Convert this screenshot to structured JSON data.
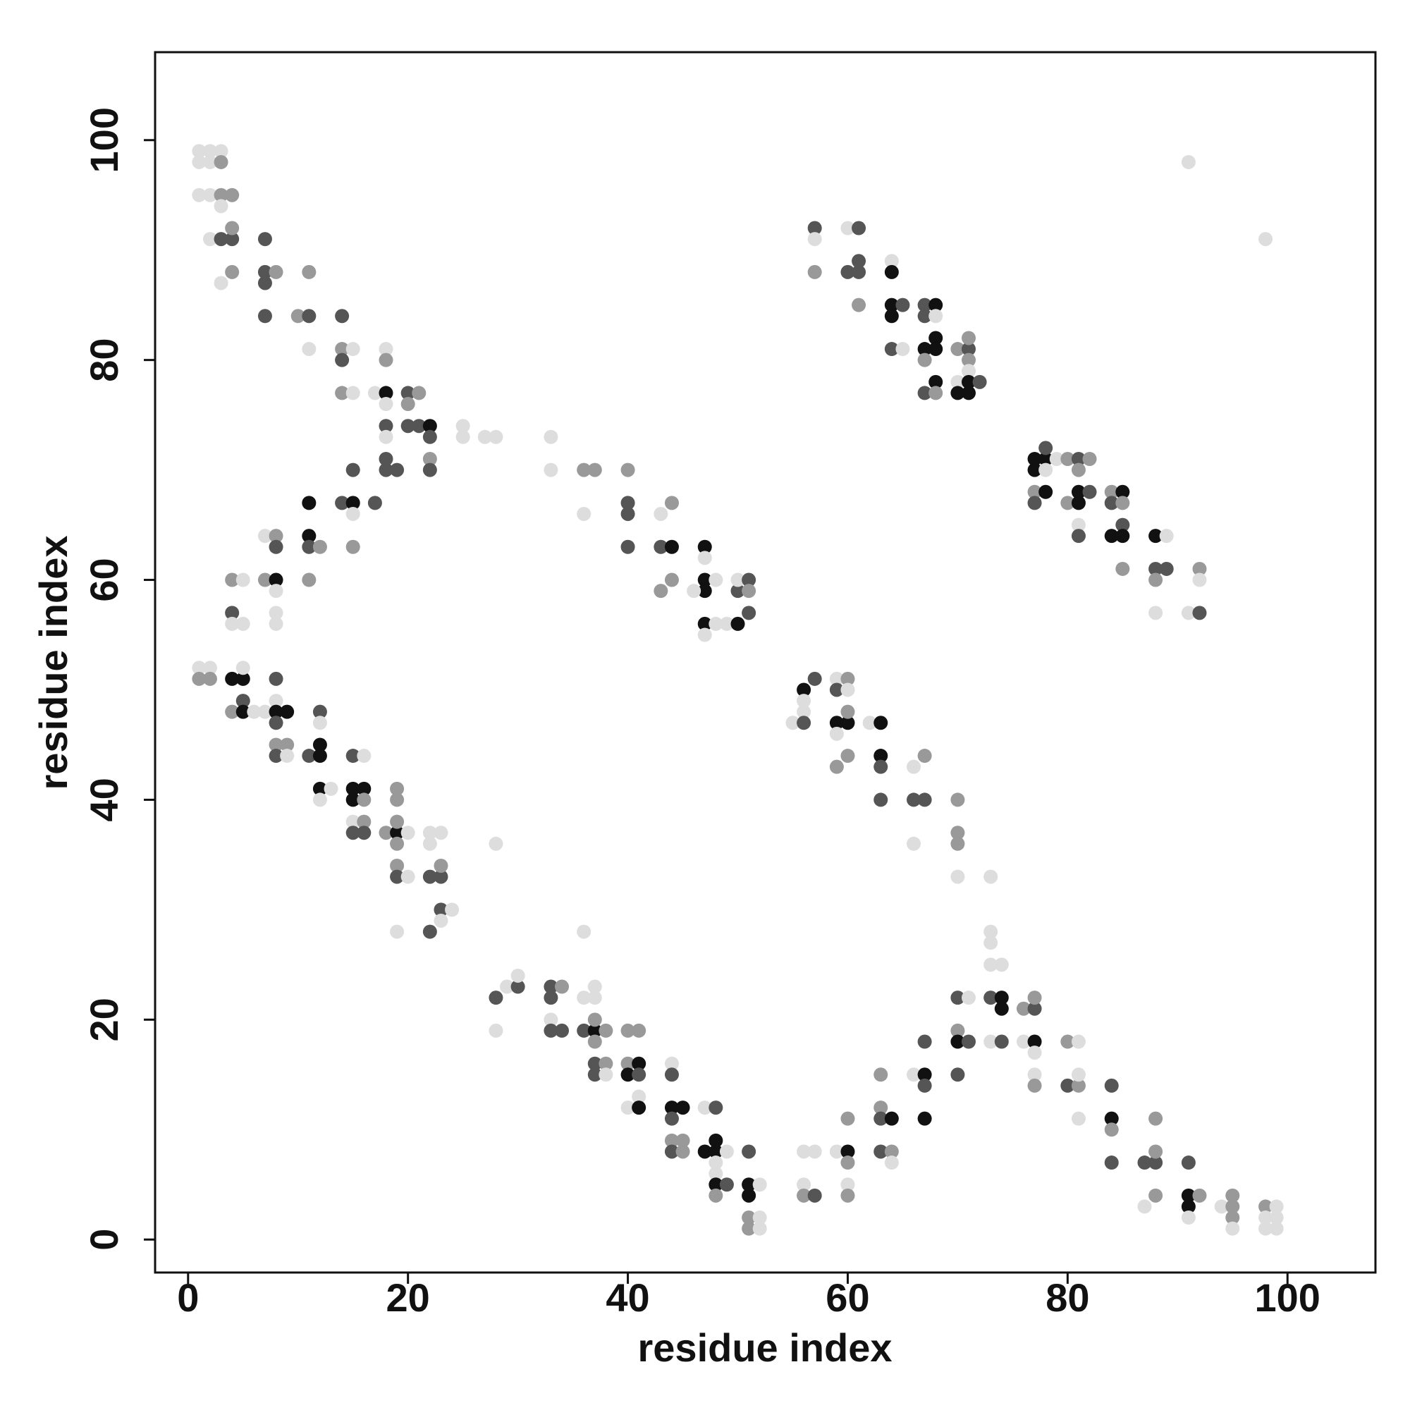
{
  "chart_data": {
    "type": "scatter",
    "xlabel": "residue index",
    "ylabel": "residue index",
    "xlim": [
      -3,
      108
    ],
    "ylim": [
      -3,
      108
    ],
    "xticks": [
      0,
      20,
      40,
      60,
      80,
      100
    ],
    "yticks": [
      0,
      20,
      40,
      60,
      80,
      100
    ],
    "x": [
      1,
      2,
      3,
      1,
      2,
      3,
      1,
      2,
      3,
      4,
      3,
      2,
      3,
      4,
      4,
      3,
      4,
      7,
      7,
      8,
      7,
      7,
      10,
      11,
      11,
      11,
      14,
      14,
      15,
      14,
      14,
      15,
      17,
      18,
      18,
      18,
      18,
      18,
      18,
      18,
      18,
      19,
      20,
      20,
      21,
      20,
      21,
      22,
      22,
      22,
      22,
      25,
      25,
      27,
      28,
      33,
      33,
      36,
      37,
      36,
      40,
      40,
      40,
      40,
      43,
      44,
      43,
      44,
      43,
      44,
      47,
      47,
      47,
      47,
      48,
      46,
      47,
      47,
      48,
      49,
      50,
      50,
      50,
      51,
      51,
      51,
      4,
      5,
      4,
      4,
      5,
      7,
      8,
      7,
      8,
      8,
      8,
      8,
      8,
      11,
      11,
      11,
      12,
      11,
      14,
      15,
      15,
      15,
      15,
      17,
      1,
      2,
      1,
      2,
      4,
      5,
      5,
      5,
      4,
      5,
      6,
      7,
      8,
      8,
      8,
      9,
      8,
      8,
      9,
      8,
      9,
      11,
      12,
      12,
      12,
      12,
      12,
      13,
      12,
      15,
      16,
      15,
      16,
      15,
      16,
      15,
      16,
      15,
      16,
      18,
      19,
      19,
      19,
      19,
      19,
      20,
      19,
      19,
      20,
      19,
      22,
      23,
      22,
      22,
      23,
      23,
      23,
      24,
      23,
      22,
      28,
      28,
      29,
      30,
      30,
      28,
      33,
      34,
      33,
      33,
      33,
      34,
      36,
      37,
      37,
      36,
      37,
      37,
      37,
      38,
      37,
      38,
      37,
      38,
      36,
      40,
      41,
      40,
      41,
      40,
      41,
      40,
      41,
      41,
      44,
      44,
      44,
      45,
      44,
      44,
      45,
      44,
      45,
      47,
      48,
      47,
      48,
      48,
      49,
      48,
      48,
      48,
      49,
      48,
      51,
      51,
      52,
      51,
      51,
      52,
      51,
      52,
      56,
      57,
      56,
      56,
      57,
      59,
      60,
      60,
      60,
      60,
      60,
      63,
      63,
      63,
      64,
      63,
      64,
      64,
      66,
      67,
      67,
      67,
      67,
      70,
      71,
      70,
      70,
      71,
      70,
      73,
      74,
      74,
      73,
      74,
      73,
      74,
      73,
      73,
      76,
      77,
      77,
      76,
      77,
      77,
      77,
      77,
      80,
      81,
      80,
      81,
      81,
      81,
      84,
      84,
      84,
      84,
      87,
      88,
      88,
      88,
      87,
      88,
      91,
      91,
      92,
      91,
      91,
      94,
      95,
      95,
      95,
      95,
      98,
      99,
      98,
      99,
      98,
      99,
      56,
      57,
      56,
      56,
      55,
      56,
      59,
      60,
      59,
      60,
      59,
      60,
      60,
      59,
      59,
      60,
      62,
      63,
      63,
      63,
      63,
      66,
      67,
      66,
      67,
      66,
      70,
      70,
      70,
      70,
      73,
      57,
      57,
      57,
      60,
      61,
      60,
      61,
      61,
      61,
      64,
      64,
      64,
      65,
      64,
      64,
      65,
      67,
      68,
      67,
      68,
      68,
      67,
      68,
      67,
      68,
      67,
      68,
      70,
      71,
      71,
      71,
      70,
      71,
      70,
      71,
      71,
      72,
      77,
      78,
      78,
      77,
      77,
      78,
      79,
      80,
      81,
      82,
      81,
      77,
      78,
      80,
      81,
      81,
      82,
      81,
      81,
      84,
      85,
      84,
      85,
      85,
      84,
      85,
      85,
      88,
      89,
      88,
      89,
      88,
      88,
      91,
      92,
      92,
      92,
      91,
      98
    ],
    "values": [
      99,
      99,
      99,
      98,
      98,
      98,
      95,
      95,
      95,
      95,
      94,
      91,
      91,
      91,
      92,
      87,
      88,
      91,
      88,
      88,
      87,
      84,
      84,
      84,
      88,
      81,
      84,
      81,
      81,
      80,
      77,
      77,
      77,
      77,
      81,
      80,
      76,
      74,
      73,
      71,
      70,
      70,
      77,
      76,
      77,
      74,
      74,
      74,
      73,
      71,
      70,
      74,
      73,
      73,
      73,
      73,
      70,
      70,
      70,
      66,
      70,
      67,
      66,
      63,
      66,
      67,
      63,
      63,
      59,
      60,
      63,
      62,
      60,
      59,
      60,
      59,
      56,
      55,
      56,
      56,
      56,
      59,
      60,
      60,
      59,
      57,
      60,
      60,
      57,
      56,
      56,
      64,
      64,
      60,
      60,
      63,
      59,
      57,
      56,
      67,
      64,
      63,
      63,
      60,
      67,
      67,
      70,
      66,
      63,
      67,
      52,
      52,
      51,
      51,
      51,
      51,
      52,
      49,
      48,
      48,
      48,
      48,
      51,
      49,
      48,
      48,
      47,
      45,
      45,
      44,
      44,
      44,
      44,
      45,
      48,
      47,
      41,
      41,
      40,
      44,
      44,
      41,
      41,
      40,
      40,
      38,
      38,
      37,
      37,
      37,
      37,
      41,
      40,
      38,
      36,
      37,
      34,
      33,
      33,
      28,
      37,
      37,
      36,
      33,
      33,
      34,
      30,
      30,
      29,
      28,
      36,
      22,
      23,
      23,
      24,
      19,
      23,
      23,
      22,
      20,
      19,
      19,
      22,
      22,
      23,
      19,
      19,
      20,
      18,
      19,
      16,
      16,
      15,
      15,
      28,
      19,
      19,
      16,
      16,
      15,
      15,
      12,
      13,
      12,
      16,
      15,
      12,
      12,
      11,
      9,
      9,
      8,
      8,
      12,
      12,
      8,
      9,
      8,
      8,
      7,
      6,
      5,
      5,
      4,
      8,
      5,
      5,
      4,
      2,
      2,
      1,
      1,
      8,
      8,
      5,
      4,
      4,
      8,
      8,
      7,
      11,
      5,
      4,
      15,
      12,
      11,
      11,
      8,
      8,
      7,
      15,
      15,
      14,
      18,
      11,
      22,
      22,
      19,
      18,
      18,
      15,
      22,
      22,
      21,
      18,
      18,
      25,
      25,
      27,
      28,
      21,
      21,
      22,
      18,
      18,
      17,
      15,
      14,
      18,
      18,
      14,
      14,
      15,
      11,
      14,
      11,
      10,
      7,
      7,
      7,
      8,
      11,
      3,
      4,
      7,
      4,
      4,
      3,
      2,
      3,
      3,
      4,
      2,
      1,
      3,
      3,
      2,
      2,
      1,
      1,
      50,
      51,
      49,
      48,
      47,
      47,
      51,
      51,
      50,
      50,
      47,
      47,
      48,
      46,
      43,
      44,
      47,
      47,
      44,
      43,
      40,
      43,
      44,
      40,
      40,
      36,
      40,
      37,
      36,
      33,
      33,
      92,
      91,
      88,
      92,
      92,
      88,
      88,
      89,
      85,
      89,
      88,
      85,
      85,
      84,
      81,
      81,
      85,
      85,
      84,
      84,
      82,
      81,
      81,
      80,
      78,
      77,
      77,
      81,
      81,
      82,
      80,
      78,
      79,
      77,
      77,
      78,
      78,
      71,
      71,
      72,
      70,
      68,
      70,
      71,
      71,
      71,
      71,
      70,
      67,
      68,
      67,
      68,
      67,
      68,
      65,
      64,
      68,
      68,
      67,
      67,
      65,
      64,
      64,
      61,
      64,
      64,
      61,
      61,
      60,
      57,
      57,
      57,
      61,
      60,
      98,
      91
    ],
    "colors": [
      "#ddd",
      "#ddd",
      "#ddd",
      "#ddd",
      "#ddd",
      "#999",
      "#ddd",
      "#ddd",
      "#999",
      "#999",
      "#ddd",
      "#ddd",
      "#555",
      "#555",
      "#999",
      "#ddd",
      "#999",
      "#555",
      "#555",
      "#999",
      "#555",
      "#555",
      "#999",
      "#555",
      "#999",
      "#ddd",
      "#555",
      "#999",
      "#ddd",
      "#555",
      "#999",
      "#ddd",
      "#ddd",
      "#111",
      "#ddd",
      "#999",
      "#ddd",
      "#555",
      "#ddd",
      "#555",
      "#555",
      "#555",
      "#555",
      "#999",
      "#999",
      "#555",
      "#555",
      "#111",
      "#555",
      "#999",
      "#555",
      "#ddd",
      "#ddd",
      "#ddd",
      "#ddd",
      "#ddd",
      "#ddd",
      "#999",
      "#999",
      "#ddd",
      "#999",
      "#555",
      "#555",
      "#555",
      "#ddd",
      "#999",
      "#555",
      "#111",
      "#999",
      "#999",
      "#111",
      "#ddd",
      "#111",
      "#111",
      "#ddd",
      "#ddd",
      "#111",
      "#ddd",
      "#ddd",
      "#ddd",
      "#111",
      "#555",
      "#ddd",
      "#555",
      "#999",
      "#555",
      "#999",
      "#ddd",
      "#555",
      "#ddd",
      "#ddd",
      "#ddd",
      "#999",
      "#999",
      "#111",
      "#555",
      "#ddd",
      "#ddd",
      "#ddd",
      "#111",
      "#111",
      "#555",
      "#999",
      "#999",
      "#555",
      "#111",
      "#555",
      "#ddd",
      "#999",
      "#555",
      "#ddd",
      "#ddd",
      "#999",
      "#999",
      "#111",
      "#111",
      "#ddd",
      "#555",
      "#999",
      "#111",
      "#ddd",
      "#ddd",
      "#555",
      "#ddd",
      "#111",
      "#111",
      "#555",
      "#999",
      "#999",
      "#555",
      "#ddd",
      "#555",
      "#111",
      "#111",
      "#555",
      "#ddd",
      "#111",
      "#ddd",
      "#ddd",
      "#555",
      "#ddd",
      "#111",
      "#111",
      "#111",
      "#999",
      "#ddd",
      "#999",
      "#555",
      "#555",
      "#999",
      "#111",
      "#999",
      "#999",
      "#999",
      "#999",
      "#ddd",
      "#999",
      "#555",
      "#ddd",
      "#ddd",
      "#ddd",
      "#ddd",
      "#ddd",
      "#555",
      "#555",
      "#999",
      "#555",
      "#ddd",
      "#ddd",
      "#555",
      "#ddd",
      "#555",
      "#ddd",
      "#555",
      "#ddd",
      "#ddd",
      "#555",
      "#999",
      "#555",
      "#ddd",
      "#555",
      "#555",
      "#ddd",
      "#ddd",
      "#ddd",
      "#555",
      "#111",
      "#999",
      "#999",
      "#999",
      "#555",
      "#999",
      "#555",
      "#ddd",
      "#ddd",
      "#999",
      "#999",
      "#999",
      "#111",
      "#111",
      "#555",
      "#ddd",
      "#ddd",
      "#111",
      "#ddd",
      "#555",
      "#111",
      "#111",
      "#555",
      "#999",
      "#999",
      "#555",
      "#999",
      "#ddd",
      "#555",
      "#111",
      "#111",
      "#111",
      "#ddd",
      "#ddd",
      "#ddd",
      "#111",
      "#555",
      "#999",
      "#555",
      "#111",
      "#ddd",
      "#111",
      "#999",
      "#ddd",
      "#999",
      "#ddd",
      "#ddd",
      "#ddd",
      "#ddd",
      "#999",
      "#555",
      "#ddd",
      "#111",
      "#999",
      "#999",
      "#ddd",
      "#999",
      "#999",
      "#999",
      "#555",
      "#111",
      "#555",
      "#999",
      "#ddd",
      "#ddd",
      "#111",
      "#555",
      "#555",
      "#111",
      "#555",
      "#ddd",
      "#999",
      "#111",
      "#555",
      "#555",
      "#555",
      "#111",
      "#111",
      "#ddd",
      "#555",
      "#ddd",
      "#ddd",
      "#ddd",
      "#ddd",
      "#999",
      "#555",
      "#999",
      "#ddd",
      "#111",
      "#ddd",
      "#ddd",
      "#999",
      "#999",
      "#ddd",
      "#555",
      "#999",
      "#ddd",
      "#ddd",
      "#555",
      "#111",
      "#999",
      "#555",
      "#555",
      "#555",
      "#999",
      "#999",
      "#ddd",
      "#999",
      "#555",
      "#111",
      "#999",
      "#111",
      "#ddd",
      "#ddd",
      "#999",
      "#999",
      "#999",
      "#ddd",
      "#999",
      "#ddd",
      "#ddd",
      "#ddd",
      "#ddd",
      "#ddd",
      "#111",
      "#555",
      "#ddd",
      "#ddd",
      "#ddd",
      "#555",
      "#ddd",
      "#999",
      "#555",
      "#ddd",
      "#111",
      "#111",
      "#999",
      "#ddd",
      "#999",
      "#999",
      "#ddd",
      "#111",
      "#111",
      "#555",
      "#555",
      "#ddd",
      "#999",
      "#555",
      "#555",
      "#ddd",
      "#999",
      "#999",
      "#999",
      "#ddd",
      "#ddd",
      "#555",
      "#ddd",
      "#999",
      "#ddd",
      "#555",
      "#555",
      "#555",
      "#555",
      "#999",
      "#ddd",
      "#111",
      "#111",
      "#555",
      "#111",
      "#555",
      "#ddd",
      "#555",
      "#111",
      "#555",
      "#ddd",
      "#111",
      "#111",
      "#111",
      "#999",
      "#111",
      "#555",
      "#999",
      "#999",
      "#555",
      "#999",
      "#999",
      "#ddd",
      "#ddd",
      "#111",
      "#111",
      "#111",
      "#555",
      "#111",
      "#111",
      "#555",
      "#111",
      "#999",
      "#ddd",
      "#ddd",
      "#999",
      "#555",
      "#999",
      "#999",
      "#555",
      "#111",
      "#999",
      "#111",
      "#111",
      "#555",
      "#ddd",
      "#555",
      "#999",
      "#111",
      "#555",
      "#999",
      "#555",
      "#111",
      "#111",
      "#999",
      "#111",
      "#ddd",
      "#555",
      "#555",
      "#999",
      "#ddd",
      "#ddd",
      "#555",
      "#999",
      "#ddd",
      "#ddd",
      "#ddd"
    ]
  }
}
